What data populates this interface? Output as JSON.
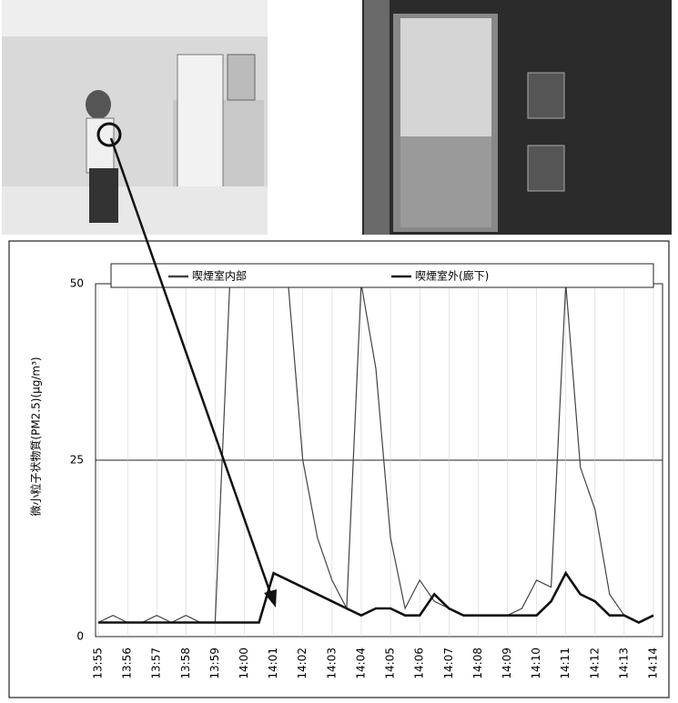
{
  "chart_data": {
    "type": "line",
    "y_label": "微小粒子状物質(PM2.5)(μg/m³)",
    "categories": [
      "13:55",
      null,
      "13:56",
      null,
      "13:57",
      null,
      "13:58",
      null,
      "13:59",
      null,
      "14:00",
      null,
      "14:01",
      null,
      "14:02",
      null,
      "14:03",
      null,
      "14:04",
      null,
      "14:05",
      null,
      "14:06",
      null,
      "14:07",
      null,
      "14:08",
      null,
      "14:09",
      null,
      "14:10",
      null,
      "14:11",
      null,
      "14:12",
      null,
      "14:13",
      null,
      "14:14"
    ],
    "series": [
      {
        "name": "喫煙室内部",
        "color": "#444444",
        "width": 1.2,
        "values": [
          2,
          3,
          2,
          2,
          3,
          2,
          3,
          2,
          2,
          50,
          50,
          50,
          50,
          50,
          25,
          14,
          8,
          4,
          50,
          38,
          14,
          4,
          8,
          5,
          4,
          3,
          3,
          3,
          3,
          4,
          8,
          7,
          50,
          24,
          18,
          6,
          3,
          2,
          3
        ]
      },
      {
        "name": "喫煙室外(廊下)",
        "color": "#111111",
        "width": 2.6,
        "values": [
          2,
          2,
          2,
          2,
          2,
          2,
          2,
          2,
          2,
          2,
          2,
          2,
          9,
          8,
          7,
          6,
          5,
          4,
          3,
          4,
          4,
          3,
          3,
          6,
          4,
          3,
          3,
          3,
          3,
          3,
          3,
          5,
          9,
          6,
          5,
          3,
          3,
          2,
          3
        ]
      }
    ],
    "ylim": [
      0,
      50
    ],
    "yticks": [
      0,
      25,
      50
    ],
    "grid": true
  }
}
